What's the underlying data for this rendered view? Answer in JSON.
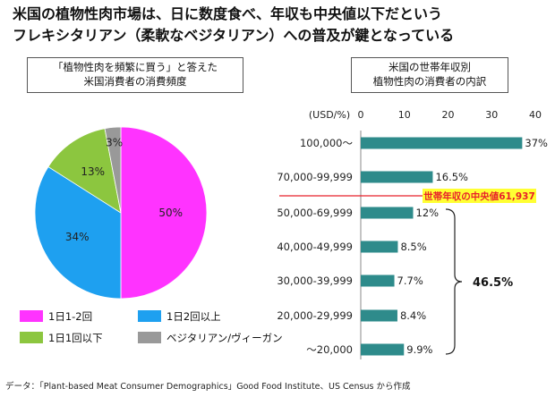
{
  "title": {
    "line1": "米国の植物性肉市場は、日に数度食べ、年収も中央値以下だという",
    "line2": "フレキシタリアン（柔軟なベジタリアン）への普及が鍵となっている"
  },
  "source": "データ：「Plant-based Meat Consumer Demographics」Good Food Institute、US Census から作成",
  "chart_data": [
    {
      "type": "pie",
      "title": "「植物性肉を頻繁に買う」と答えた\n米国消費者の消費頻度",
      "title_lines": [
        "「植物性肉を頻繁に買う」と答えた",
        "米国消費者の消費頻度"
      ],
      "slices": [
        {
          "label": "1日1-2回",
          "value": 50,
          "value_label": "50%",
          "color": "#ff33ff"
        },
        {
          "label": "1日2回以上",
          "value": 34,
          "value_label": "34%",
          "color": "#1ea0f0"
        },
        {
          "label": "1日1回以下",
          "value": 13,
          "value_label": "13%",
          "color": "#8cc63f"
        },
        {
          "label": "ベジタリアン/ヴィーガン",
          "value": 3,
          "value_label": "3%",
          "color": "#999999"
        }
      ]
    },
    {
      "type": "bar",
      "orientation": "horizontal",
      "title": "米国の世帯年収別\n植物性肉の消費者の内訳",
      "title_lines": [
        "米国の世帯年収別",
        "植物性肉の消費者の内訳"
      ],
      "axis_unit_label": "(USD/%)",
      "xlim": [
        0,
        40
      ],
      "xticks": [
        "0",
        "10",
        "20",
        "30",
        "40"
      ],
      "categories": [
        "100,000～",
        "70,000-99,999",
        "50,000-69,999",
        "40,000-49,999",
        "30,000-39,999",
        "20,000-29,999",
        "～20,000"
      ],
      "values": [
        37,
        16.5,
        12,
        8.5,
        7.7,
        8.4,
        9.9
      ],
      "value_labels": [
        "37%",
        "16.5%",
        "12%",
        "8.5%",
        "7.7%",
        "8.4%",
        "9.9%"
      ],
      "bar_color": "#2e8b8b",
      "median_line_label": "世帯年収の中央値61,937",
      "bracket_label": "46.5%"
    }
  ]
}
